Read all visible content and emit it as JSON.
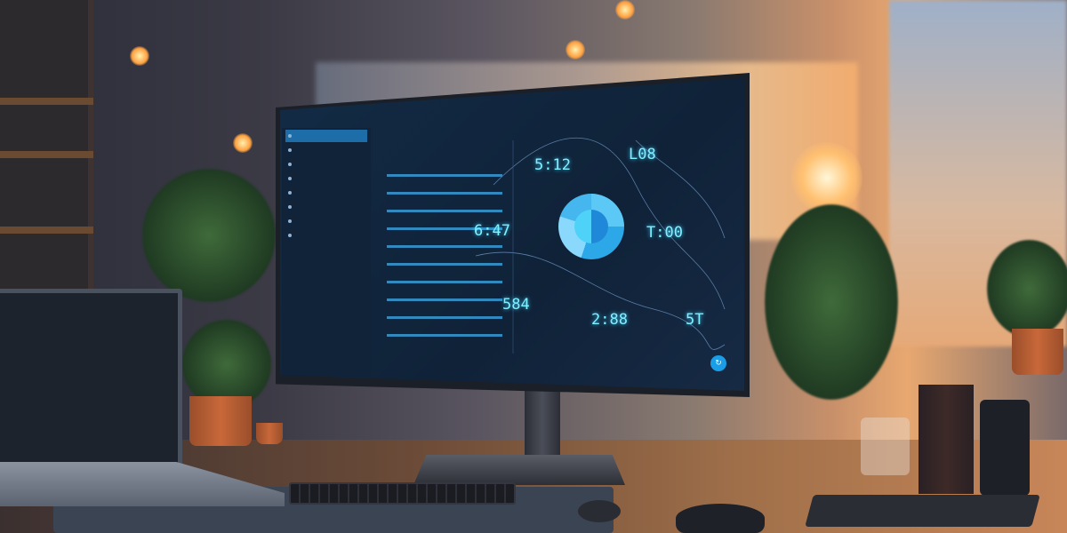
{
  "scene": {
    "accent_color": "#7ff1ff",
    "screen_color": "#132b45",
    "sunset_color": "#f7b070"
  },
  "dashboard": {
    "metrics": [
      {
        "value": "5:12"
      },
      {
        "value": "L08"
      },
      {
        "value": "6:47"
      },
      {
        "value": "T:00"
      },
      {
        "value": "584"
      },
      {
        "value": "2:88"
      },
      {
        "value": "5T"
      }
    ],
    "fab_icon": "refresh-icon"
  }
}
